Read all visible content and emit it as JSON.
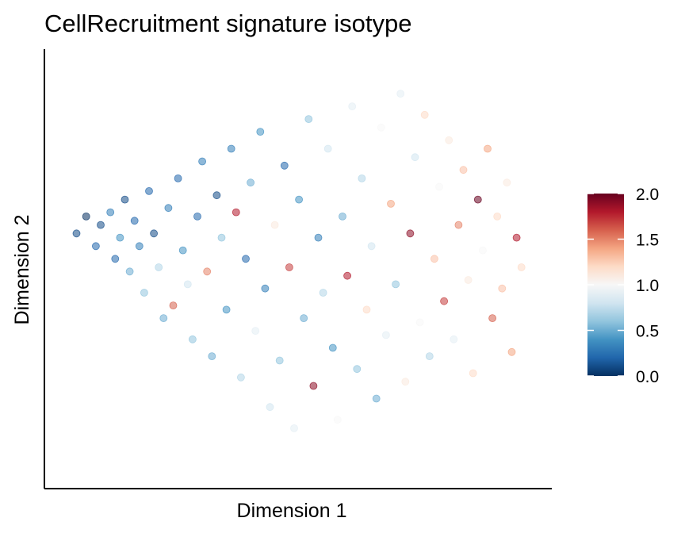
{
  "chart_data": {
    "type": "scatter",
    "title": "CellRecruitment signature isotype",
    "xlabel": "Dimension 1",
    "ylabel": "Dimension 2",
    "xlim": [
      0,
      100
    ],
    "ylim": [
      0,
      100
    ],
    "x_ticks_shown": false,
    "y_ticks_shown": false,
    "grid": false,
    "point_opacity": 0.55,
    "colorbar": {
      "placement": "right",
      "min": 0.0,
      "max": 2.0,
      "ticks": [
        "0.0",
        "0.5",
        "1.0",
        "1.5",
        "2.0"
      ],
      "colors": [
        "#053061",
        "#2166ac",
        "#4393c3",
        "#92c5de",
        "#d1e5f0",
        "#f7f7f7",
        "#fddbc7",
        "#f4a582",
        "#d6604d",
        "#b2182b",
        "#67001f"
      ]
    },
    "points": [
      {
        "x": 5,
        "y": 58,
        "v": 0.1
      },
      {
        "x": 7,
        "y": 62,
        "v": 0.0
      },
      {
        "x": 9,
        "y": 55,
        "v": 0.2
      },
      {
        "x": 10,
        "y": 60,
        "v": 0.1
      },
      {
        "x": 12,
        "y": 63,
        "v": 0.3
      },
      {
        "x": 13,
        "y": 52,
        "v": 0.2
      },
      {
        "x": 14,
        "y": 57,
        "v": 0.4
      },
      {
        "x": 15,
        "y": 66,
        "v": 0.1
      },
      {
        "x": 16,
        "y": 49,
        "v": 0.5
      },
      {
        "x": 17,
        "y": 61,
        "v": 0.2
      },
      {
        "x": 18,
        "y": 55,
        "v": 0.3
      },
      {
        "x": 19,
        "y": 44,
        "v": 0.6
      },
      {
        "x": 20,
        "y": 68,
        "v": 0.2
      },
      {
        "x": 21,
        "y": 58,
        "v": 0.1
      },
      {
        "x": 22,
        "y": 50,
        "v": 0.7
      },
      {
        "x": 23,
        "y": 38,
        "v": 0.5
      },
      {
        "x": 24,
        "y": 64,
        "v": 0.3
      },
      {
        "x": 25,
        "y": 41,
        "v": 1.6
      },
      {
        "x": 26,
        "y": 71,
        "v": 0.2
      },
      {
        "x": 27,
        "y": 54,
        "v": 0.4
      },
      {
        "x": 28,
        "y": 46,
        "v": 0.8
      },
      {
        "x": 29,
        "y": 33,
        "v": 0.6
      },
      {
        "x": 30,
        "y": 62,
        "v": 0.2
      },
      {
        "x": 31,
        "y": 75,
        "v": 0.3
      },
      {
        "x": 32,
        "y": 49,
        "v": 1.5
      },
      {
        "x": 33,
        "y": 29,
        "v": 0.5
      },
      {
        "x": 34,
        "y": 67,
        "v": 0.1
      },
      {
        "x": 35,
        "y": 57,
        "v": 0.6
      },
      {
        "x": 36,
        "y": 40,
        "v": 0.4
      },
      {
        "x": 37,
        "y": 78,
        "v": 0.3
      },
      {
        "x": 38,
        "y": 63,
        "v": 1.8
      },
      {
        "x": 39,
        "y": 24,
        "v": 0.7
      },
      {
        "x": 40,
        "y": 52,
        "v": 0.2
      },
      {
        "x": 41,
        "y": 70,
        "v": 0.5
      },
      {
        "x": 42,
        "y": 35,
        "v": 0.9
      },
      {
        "x": 43,
        "y": 82,
        "v": 0.4
      },
      {
        "x": 44,
        "y": 45,
        "v": 0.3
      },
      {
        "x": 45,
        "y": 17,
        "v": 0.8
      },
      {
        "x": 46,
        "y": 60,
        "v": 1.1
      },
      {
        "x": 47,
        "y": 28,
        "v": 0.6
      },
      {
        "x": 48,
        "y": 74,
        "v": 0.2
      },
      {
        "x": 49,
        "y": 50,
        "v": 1.7
      },
      {
        "x": 50,
        "y": 12,
        "v": 0.9
      },
      {
        "x": 51,
        "y": 66,
        "v": 0.4
      },
      {
        "x": 52,
        "y": 38,
        "v": 0.5
      },
      {
        "x": 53,
        "y": 85,
        "v": 0.6
      },
      {
        "x": 54,
        "y": 22,
        "v": 1.9
      },
      {
        "x": 55,
        "y": 57,
        "v": 0.3
      },
      {
        "x": 56,
        "y": 44,
        "v": 0.7
      },
      {
        "x": 57,
        "y": 78,
        "v": 0.8
      },
      {
        "x": 58,
        "y": 31,
        "v": 0.4
      },
      {
        "x": 59,
        "y": 14,
        "v": 1.0
      },
      {
        "x": 60,
        "y": 62,
        "v": 0.5
      },
      {
        "x": 61,
        "y": 48,
        "v": 1.8
      },
      {
        "x": 62,
        "y": 88,
        "v": 0.9
      },
      {
        "x": 63,
        "y": 26,
        "v": 0.6
      },
      {
        "x": 64,
        "y": 71,
        "v": 0.7
      },
      {
        "x": 65,
        "y": 40,
        "v": 1.2
      },
      {
        "x": 66,
        "y": 55,
        "v": 0.8
      },
      {
        "x": 67,
        "y": 19,
        "v": 0.5
      },
      {
        "x": 68,
        "y": 83,
        "v": 1.0
      },
      {
        "x": 69,
        "y": 34,
        "v": 0.9
      },
      {
        "x": 70,
        "y": 65,
        "v": 1.4
      },
      {
        "x": 71,
        "y": 46,
        "v": 0.6
      },
      {
        "x": 72,
        "y": 91,
        "v": 0.9
      },
      {
        "x": 73,
        "y": 23,
        "v": 1.1
      },
      {
        "x": 74,
        "y": 58,
        "v": 1.9
      },
      {
        "x": 75,
        "y": 76,
        "v": 0.8
      },
      {
        "x": 76,
        "y": 37,
        "v": 1.0
      },
      {
        "x": 77,
        "y": 86,
        "v": 1.2
      },
      {
        "x": 78,
        "y": 29,
        "v": 0.7
      },
      {
        "x": 79,
        "y": 52,
        "v": 1.3
      },
      {
        "x": 80,
        "y": 69,
        "v": 1.0
      },
      {
        "x": 81,
        "y": 42,
        "v": 1.7
      },
      {
        "x": 82,
        "y": 80,
        "v": 1.1
      },
      {
        "x": 83,
        "y": 33,
        "v": 0.9
      },
      {
        "x": 84,
        "y": 60,
        "v": 1.5
      },
      {
        "x": 85,
        "y": 73,
        "v": 1.3
      },
      {
        "x": 86,
        "y": 47,
        "v": 1.1
      },
      {
        "x": 87,
        "y": 25,
        "v": 1.2
      },
      {
        "x": 88,
        "y": 66,
        "v": 2.0
      },
      {
        "x": 89,
        "y": 54,
        "v": 1.0
      },
      {
        "x": 90,
        "y": 78,
        "v": 1.4
      },
      {
        "x": 91,
        "y": 38,
        "v": 1.6
      },
      {
        "x": 92,
        "y": 62,
        "v": 1.2
      },
      {
        "x": 93,
        "y": 45,
        "v": 1.3
      },
      {
        "x": 94,
        "y": 70,
        "v": 1.1
      },
      {
        "x": 95,
        "y": 30,
        "v": 1.4
      },
      {
        "x": 96,
        "y": 57,
        "v": 1.8
      },
      {
        "x": 97,
        "y": 50,
        "v": 1.2
      }
    ]
  }
}
